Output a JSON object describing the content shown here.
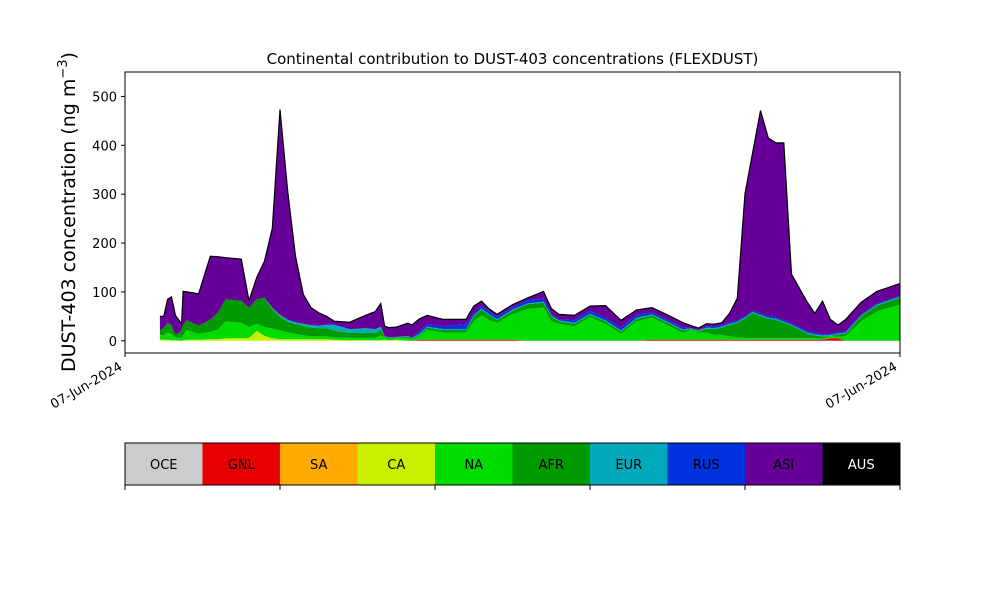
{
  "chart_data": {
    "type": "area",
    "stacked": true,
    "title": "Continental contribution to DUST-403 concentrations (FLEXDUST)",
    "ylabel_main": "DUST-403 concentration (ng m",
    "ylabel_exp": "−3",
    "ylabel_close": ")",
    "ylim": [
      -25,
      550
    ],
    "yticks": [
      0,
      100,
      200,
      300,
      400,
      500
    ],
    "xlim": [
      0,
      100
    ],
    "xtick_labels": [
      "07-Jun-2024",
      "07-Jun-2024"
    ],
    "grid": false,
    "x": [
      4.5,
      5.0,
      5.5,
      6.0,
      6.5,
      7.3,
      7.5,
      8.0,
      9.5,
      11.0,
      12.0,
      13.0,
      15.0,
      16.0,
      17.0,
      18.0,
      19.0,
      20.0,
      21.0,
      22.0,
      23.0,
      24.0,
      25.0,
      26.0,
      27.0,
      29.0,
      31.0,
      32.3,
      33.0,
      33.5,
      34.0,
      35.0,
      36.5,
      37.0,
      38.0,
      39.0,
      41.0,
      44.0,
      45.0,
      46.0,
      47.0,
      48.0,
      50.0,
      52.0,
      54.0,
      55.0,
      56.0,
      58.0,
      60.0,
      62.0,
      64.0,
      66.0,
      68.0,
      70.0,
      72.0,
      73.0,
      74.0,
      75.0,
      76.0,
      77.0,
      78.0,
      79.0,
      80.0,
      81.0,
      82.0,
      83.0,
      84.0,
      85.0,
      86.0,
      88.0,
      89.0,
      90.0,
      91.0,
      92.0,
      93.0,
      95.0,
      97.0,
      100.0
    ],
    "series": [
      {
        "name": "OCE",
        "color": "#cccccc",
        "values": [
          0,
          0,
          0,
          0,
          0,
          0,
          0,
          0,
          0,
          0,
          0,
          0,
          0,
          0,
          0,
          0,
          0,
          0,
          0,
          0,
          0,
          0,
          0,
          0,
          0,
          0,
          0,
          0,
          0,
          0,
          0,
          0,
          0,
          0,
          0,
          0,
          0,
          0,
          0,
          0,
          0,
          0,
          0,
          0,
          0,
          0,
          0,
          0,
          0,
          0,
          0,
          0,
          0,
          0,
          0,
          0,
          0,
          0,
          0,
          0,
          0,
          0,
          0,
          0,
          0,
          0,
          0,
          0,
          0,
          0,
          0,
          0,
          0,
          0,
          0,
          0,
          0,
          0
        ]
      },
      {
        "name": "GNL",
        "color": "#e80000",
        "values": [
          0,
          0,
          0,
          0,
          0,
          0,
          0,
          0,
          0,
          0,
          0,
          0,
          0,
          0,
          0,
          0,
          0,
          0,
          0,
          0,
          0,
          0,
          0,
          0,
          0,
          0,
          0,
          0,
          0,
          0,
          0,
          0,
          0,
          0,
          2,
          2,
          2,
          2,
          2,
          2,
          2,
          2,
          2,
          0,
          0,
          0,
          0,
          0,
          0,
          0,
          0,
          0,
          2,
          2,
          2,
          2,
          2,
          2,
          2,
          2,
          2,
          2,
          2,
          2,
          2,
          2,
          2,
          2,
          2,
          2,
          2,
          2,
          5,
          5,
          0,
          0,
          0,
          0
        ]
      },
      {
        "name": "SA",
        "color": "#ffaa00",
        "values": [
          0,
          0,
          0,
          0,
          0,
          0,
          0,
          0,
          0,
          0,
          0,
          0,
          0,
          0,
          0,
          0,
          0,
          0,
          0,
          0,
          0,
          0,
          0,
          0,
          0,
          0,
          0,
          0,
          0,
          0,
          0,
          0,
          0,
          0,
          0,
          0,
          0,
          0,
          0,
          0,
          0,
          0,
          0,
          0,
          0,
          0,
          0,
          0,
          0,
          0,
          0,
          0,
          0,
          0,
          0,
          0,
          0,
          0,
          0,
          0,
          0,
          0,
          0,
          0,
          0,
          0,
          0,
          0,
          0,
          0,
          0,
          0,
          0,
          0,
          0,
          0,
          0,
          0
        ]
      },
      {
        "name": "CA",
        "color": "#c8f000",
        "values": [
          3,
          2,
          2,
          1,
          1,
          0,
          1,
          2,
          2,
          3,
          3,
          5,
          5,
          6,
          20,
          10,
          5,
          3,
          3,
          3,
          3,
          3,
          3,
          3,
          2,
          1,
          1,
          1,
          1,
          2,
          1,
          2,
          0,
          0,
          0,
          0,
          0,
          0,
          0,
          0,
          0,
          0,
          0,
          0,
          0,
          0,
          0,
          0,
          0,
          0,
          0,
          0,
          0,
          0,
          0,
          0,
          0,
          0,
          0,
          0,
          0,
          0,
          0,
          0,
          0,
          0,
          0,
          0,
          0,
          0,
          0,
          0,
          0,
          0,
          0,
          0,
          0,
          0
        ]
      },
      {
        "name": "NA",
        "color": "#00dc00",
        "values": [
          8,
          10,
          15,
          14,
          6,
          6,
          10,
          20,
          12,
          15,
          20,
          35,
          32,
          22,
          15,
          18,
          20,
          18,
          14,
          11,
          8,
          6,
          6,
          6,
          5,
          5,
          5,
          5,
          10,
          5,
          3,
          3,
          5,
          2,
          8,
          20,
          15,
          15,
          38,
          50,
          40,
          35,
          52,
          65,
          68,
          40,
          35,
          30,
          48,
          35,
          14,
          40,
          45,
          30,
          14,
          20,
          15,
          15,
          10,
          10,
          7,
          5,
          4,
          3,
          3,
          3,
          3,
          3,
          3,
          3,
          3,
          2,
          5,
          3,
          10,
          40,
          60,
          74
        ]
      },
      {
        "name": "AFR",
        "color": "#009a00",
        "values": [
          10,
          15,
          20,
          17,
          5,
          15,
          22,
          20,
          17,
          25,
          35,
          45,
          45,
          40,
          50,
          60,
          40,
          28,
          22,
          20,
          20,
          18,
          17,
          17,
          14,
          10,
          10,
          10,
          12,
          2,
          2,
          2,
          3,
          2,
          2,
          5,
          5,
          5,
          10,
          12,
          10,
          5,
          8,
          10,
          10,
          10,
          5,
          5,
          5,
          5,
          5,
          5,
          5,
          5,
          5,
          2,
          2,
          8,
          12,
          15,
          24,
          30,
          40,
          52,
          46,
          40,
          38,
          32,
          26,
          10,
          6,
          5,
          0,
          5,
          5,
          10,
          12,
          14
        ]
      },
      {
        "name": "EUR",
        "color": "#00aabb",
        "values": [
          0,
          0,
          0,
          0,
          0,
          0,
          0,
          0,
          0,
          0,
          0,
          0,
          0,
          0,
          0,
          0,
          3,
          4,
          4,
          4,
          4,
          5,
          5,
          7,
          12,
          8,
          10,
          8,
          6,
          1,
          1,
          1,
          2,
          2,
          2,
          2,
          2,
          2,
          2,
          2,
          2,
          2,
          2,
          2,
          2,
          2,
          2,
          2,
          2,
          2,
          2,
          2,
          2,
          2,
          2,
          2,
          2,
          2,
          2,
          2,
          2,
          2,
          2,
          2,
          2,
          2,
          2,
          2,
          2,
          2,
          2,
          2,
          2,
          2,
          2,
          2,
          2,
          2
        ]
      },
      {
        "name": "RUS",
        "color": "#0033dd",
        "values": [
          0,
          0,
          0,
          0,
          0,
          0,
          0,
          0,
          0,
          0,
          0,
          0,
          0,
          0,
          0,
          0,
          0,
          0,
          0,
          0,
          0,
          0,
          0,
          0,
          0,
          0,
          0,
          0,
          0,
          0,
          0,
          0,
          0,
          0,
          5,
          5,
          6,
          10,
          4,
          5,
          6,
          5,
          5,
          6,
          6,
          4,
          2,
          5,
          6,
          5,
          6,
          6,
          4,
          4,
          4,
          0,
          0,
          3,
          3,
          3,
          3,
          3,
          3,
          3,
          3,
          3,
          3,
          3,
          3,
          3,
          3,
          2,
          2,
          2,
          2,
          2,
          2,
          2
        ]
      },
      {
        "name": "ASI",
        "color": "#660099",
        "values": [
          29,
          23,
          48,
          58,
          40,
          14,
          68,
          58,
          65,
          130,
          114,
          85,
          85,
          14,
          45,
          75,
          162,
          420,
          261,
          135,
          60,
          36,
          26,
          17,
          7,
          14,
          26,
          36,
          47,
          20,
          20,
          20,
          26,
          26,
          26,
          18,
          14,
          10,
          15,
          10,
          5,
          5,
          5,
          5,
          15,
          10,
          10,
          10,
          10,
          25,
          15,
          10,
          10,
          10,
          10,
          5,
          5,
          5,
          5,
          5,
          18,
          45,
          250,
          325,
          415,
          365,
          357,
          363,
          100,
          60,
          40,
          68,
          30,
          15,
          25,
          25,
          25,
          25
        ]
      },
      {
        "name": "AUS",
        "color": "#000000",
        "values": [
          0,
          0,
          0,
          0,
          0,
          0,
          0,
          0,
          0,
          0,
          0,
          0,
          0,
          0,
          0,
          0,
          0,
          0,
          0,
          0,
          0,
          0,
          0,
          0,
          0,
          0,
          0,
          0,
          0,
          0,
          0,
          0,
          0,
          0,
          0,
          0,
          0,
          0,
          0,
          0,
          0,
          0,
          0,
          0,
          0,
          0,
          0,
          0,
          0,
          0,
          0,
          0,
          0,
          0,
          0,
          0,
          0,
          0,
          0,
          0,
          0,
          0,
          0,
          0,
          0,
          0,
          0,
          0,
          0,
          0,
          0,
          0,
          0,
          0,
          0,
          0,
          0,
          0
        ]
      }
    ]
  }
}
